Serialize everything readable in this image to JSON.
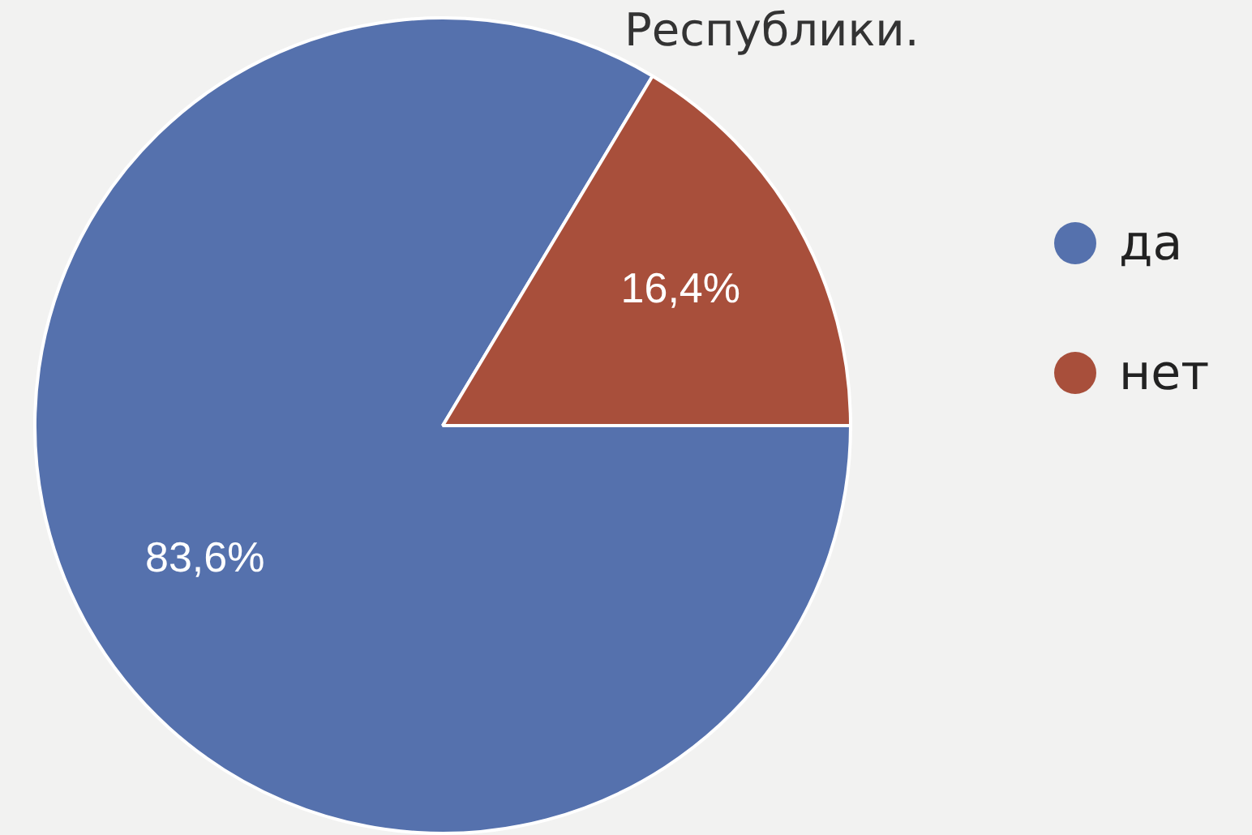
{
  "chart_data": {
    "type": "pie",
    "title": "Республики.",
    "categories": [
      "да",
      "нет"
    ],
    "values": [
      83.6,
      16.4
    ],
    "colors": [
      "#5571ad",
      "#a84f3b"
    ],
    "value_labels": [
      "83,6%",
      "16,4%"
    ],
    "legend": "right"
  }
}
